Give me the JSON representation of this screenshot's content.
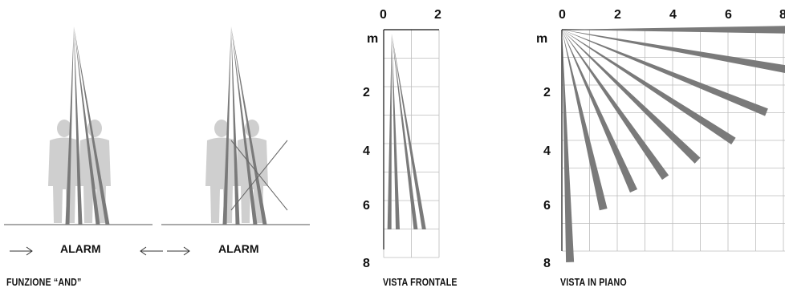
{
  "and_function": {
    "caption": "FUNZIONE “AND”",
    "panels": [
      {
        "alarm_label": "ALARM",
        "crossed": false
      },
      {
        "alarm_label": "ALARM",
        "crossed": true
      }
    ]
  },
  "front_view": {
    "caption": "VISTA FRONTALE",
    "unit": "m",
    "x_ticks": [
      "0",
      "2"
    ],
    "y_ticks": [
      "2",
      "4",
      "6",
      "8"
    ],
    "range_x_m": [
      0,
      2
    ],
    "range_y_m": [
      0,
      8
    ],
    "beam_end_x_m": [
      0.15,
      0.45,
      1.1,
      1.4
    ]
  },
  "plan_view": {
    "caption": "VISTA IN PIANO",
    "unit": "m",
    "x_ticks": [
      "0",
      "2",
      "4",
      "6",
      "8"
    ],
    "y_ticks": [
      "2",
      "4",
      "6",
      "8"
    ],
    "range_m": [
      0,
      8
    ],
    "beam_angles_deg": [
      0,
      10,
      22,
      33,
      44,
      55,
      66,
      77,
      88
    ],
    "colors": {
      "beam": "#7a7a7a",
      "grid": "#bcbcbc",
      "silhouette": "#cfcfcf"
    }
  }
}
